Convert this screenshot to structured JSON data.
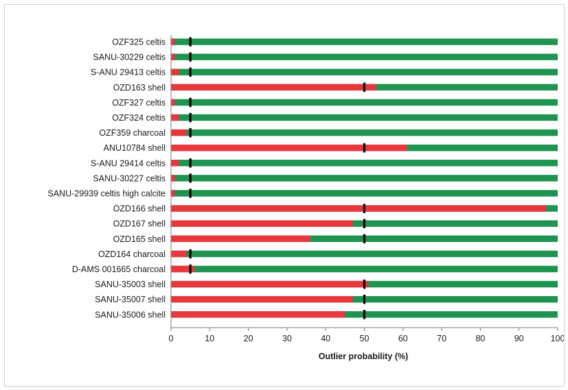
{
  "chart_data": {
    "type": "bar",
    "orientation": "horizontal",
    "stacked": true,
    "xlabel": "Outlier probability (%)",
    "xlim": [
      0,
      100
    ],
    "xticks": [
      0,
      10,
      20,
      30,
      40,
      50,
      60,
      70,
      80,
      90,
      100
    ],
    "grid": false,
    "colors": {
      "posterior": "#e8383d",
      "remainder": "#1e9450",
      "prior_marker": "#000000"
    },
    "categories": [
      "OZF325 celtis",
      "SANU-30229 celtis",
      "S-ANU 29413 celtis",
      "OZD163 shell",
      "OZF327 celtis",
      "OZF324 celtis",
      "OZF359 charcoal",
      "ANU10784 shell",
      "S-ANU 29414 celtis",
      "SANU-30227 celtis",
      "SANU-29939 celtis high calcite",
      "OZD166 shell",
      "OZD167 shell",
      "OZD165 shell",
      "OZD164 charcoal",
      "D-AMS 001665 charcoal",
      "SANU-35003 shell",
      "SANU-35007 shell",
      "SANU-35006 shell"
    ],
    "posterior_values": [
      1,
      1,
      2,
      53,
      1,
      2,
      4,
      61,
      2,
      1,
      1,
      97,
      47,
      36,
      4,
      6,
      51,
      47,
      45
    ],
    "prior_values": [
      5,
      5,
      5,
      50,
      5,
      5,
      5,
      50,
      5,
      5,
      5,
      50,
      50,
      50,
      5,
      5,
      50,
      50,
      50
    ]
  }
}
